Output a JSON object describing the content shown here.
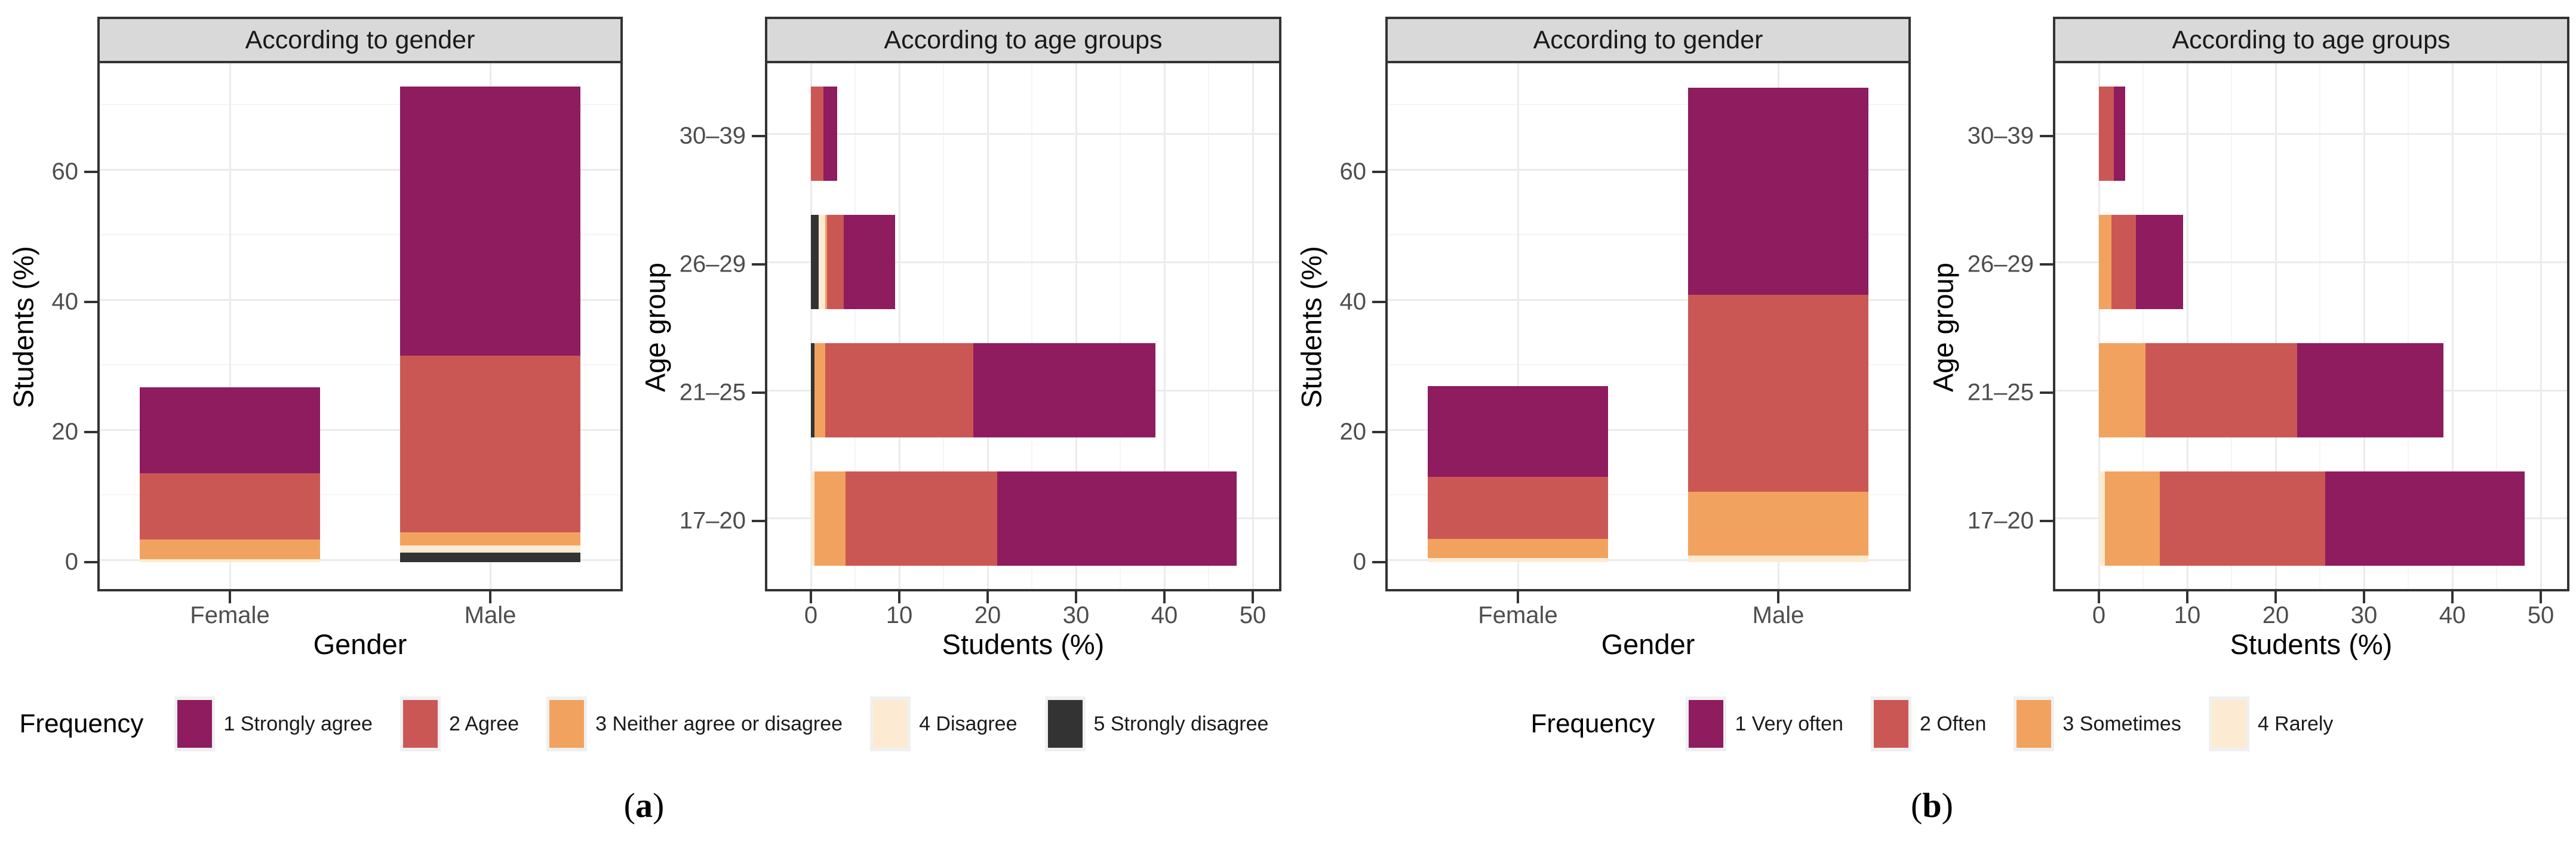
{
  "figure": {
    "halves": [
      {
        "caption": {
          "open": "(",
          "letter": "a",
          "close": ")"
        },
        "legend": {
          "title": "Frequency",
          "items": [
            {
              "label": "1 Strongly agree",
              "color": "#8E1C5F"
            },
            {
              "label": "2 Agree",
              "color": "#CB5755"
            },
            {
              "label": "3 Neither agree or disagree",
              "color": "#F2A25F"
            },
            {
              "label": "4 Disagree",
              "color": "#FCEBD2"
            },
            {
              "label": "5 Strongly disagree",
              "color": "#333333"
            }
          ]
        }
      },
      {
        "caption": {
          "open": "(",
          "letter": "b",
          "close": ")"
        },
        "legend": {
          "title": "Frequency",
          "items": [
            {
              "label": "1 Very often",
              "color": "#8E1C5F"
            },
            {
              "label": "2 Often",
              "color": "#CB5755"
            },
            {
              "label": "3 Sometimes",
              "color": "#F2A25F"
            },
            {
              "label": "4 Rarely",
              "color": "#FCEBD2"
            }
          ]
        }
      }
    ],
    "style": {
      "strip_background": "#D9D9D9",
      "panel_border": "#333333",
      "grid_major": "#EBEBEB",
      "grid_minor": "#F5F5F5",
      "tick_text": "#4D4D4D"
    }
  },
  "chart_data": [
    {
      "id": "a-gender",
      "type": "bar",
      "subtype": "vertical-stacked",
      "title": "According to gender",
      "xlabel": "Gender",
      "ylabel": "Students (%)",
      "categories": [
        "Female",
        "Male"
      ],
      "value_axis": {
        "ticks": [
          0,
          20,
          40,
          60
        ],
        "minor": [
          10,
          30,
          50,
          70
        ],
        "lim": [
          0,
          77
        ]
      },
      "grid": true,
      "legend_position": "bottom",
      "series": [
        {
          "name": "1 Strongly agree",
          "color": "#8E1C5F",
          "values": [
            13.2,
            41.4
          ]
        },
        {
          "name": "2 Agree",
          "color": "#CB5755",
          "values": [
            10.2,
            27.1
          ]
        },
        {
          "name": "3 Neither agree or disagree",
          "color": "#F2A25F",
          "values": [
            3.0,
            2.0
          ]
        },
        {
          "name": "4 Disagree",
          "color": "#FCEBD2",
          "values": [
            0.5,
            1.1
          ]
        },
        {
          "name": "5 Strongly disagree",
          "color": "#333333",
          "values": [
            0,
            1.5
          ]
        }
      ]
    },
    {
      "id": "a-age",
      "type": "bar",
      "subtype": "horizontal-stacked",
      "title": "According to age groups",
      "xlabel": "Students (%)",
      "ylabel": "Age group",
      "categories": [
        "30–39",
        "26–29",
        "21–25",
        "17–20"
      ],
      "value_axis": {
        "ticks": [
          0,
          10,
          20,
          30,
          40,
          50
        ],
        "minor": [
          5,
          15,
          25,
          35,
          45
        ],
        "lim": [
          0,
          52
        ]
      },
      "grid": true,
      "legend_position": "bottom",
      "series": [
        {
          "name": "1 Strongly agree",
          "color": "#8E1C5F",
          "values": [
            1.6,
            5.8,
            20.6,
            27.1
          ]
        },
        {
          "name": "2 Agree",
          "color": "#CB5755",
          "values": [
            1.4,
            1.9,
            16.8,
            17.2
          ]
        },
        {
          "name": "3 Neither agree or disagree",
          "color": "#F2A25F",
          "values": [
            0,
            0.2,
            1.2,
            3.5
          ]
        },
        {
          "name": "4 Disagree",
          "color": "#FCEBD2",
          "values": [
            0,
            0.7,
            0,
            0.4
          ]
        },
        {
          "name": "5 Strongly disagree",
          "color": "#333333",
          "values": [
            0,
            0.9,
            0.4,
            0
          ]
        }
      ]
    },
    {
      "id": "b-gender",
      "type": "bar",
      "subtype": "vertical-stacked",
      "title": "According to gender",
      "xlabel": "Gender",
      "ylabel": "Students (%)",
      "categories": [
        "Female",
        "Male"
      ],
      "value_axis": {
        "ticks": [
          0,
          20,
          40,
          60
        ],
        "minor": [
          10,
          30,
          50,
          70
        ],
        "lim": [
          0,
          77
        ]
      },
      "grid": true,
      "legend_position": "bottom",
      "series": [
        {
          "name": "1 Very often",
          "color": "#8E1C5F",
          "values": [
            14.0,
            31.8
          ]
        },
        {
          "name": "2 Often",
          "color": "#CB5755",
          "values": [
            9.5,
            30.3
          ]
        },
        {
          "name": "3 Sometimes",
          "color": "#F2A25F",
          "values": [
            3.0,
            9.8
          ]
        },
        {
          "name": "4 Rarely",
          "color": "#FCEBD2",
          "values": [
            0.6,
            1.0
          ]
        }
      ]
    },
    {
      "id": "b-age",
      "type": "bar",
      "subtype": "horizontal-stacked",
      "title": "According to age groups",
      "xlabel": "Students (%)",
      "ylabel": "Age group",
      "categories": [
        "30–39",
        "26–29",
        "21–25",
        "17–20"
      ],
      "value_axis": {
        "ticks": [
          0,
          10,
          20,
          30,
          40,
          50
        ],
        "minor": [
          5,
          15,
          25,
          35,
          45
        ],
        "lim": [
          0,
          52
        ]
      },
      "grid": true,
      "legend_position": "bottom",
      "series": [
        {
          "name": "1 Very often",
          "color": "#8E1C5F",
          "values": [
            1.3,
            5.3,
            16.6,
            22.6
          ]
        },
        {
          "name": "2 Often",
          "color": "#CB5755",
          "values": [
            1.7,
            2.8,
            17.1,
            18.7
          ]
        },
        {
          "name": "3 Sometimes",
          "color": "#F2A25F",
          "values": [
            0,
            1.4,
            5.3,
            6.2
          ]
        },
        {
          "name": "4 Rarely",
          "color": "#FCEBD2",
          "values": [
            0,
            0,
            0,
            0.7
          ]
        }
      ]
    }
  ]
}
